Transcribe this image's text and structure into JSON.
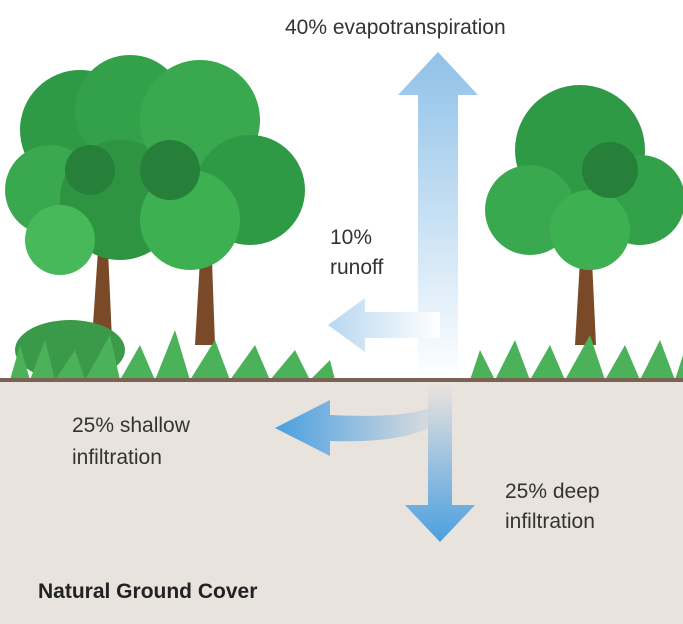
{
  "title": "Natural Ground Cover",
  "flows": [
    {
      "lines": [
        "40% evapotranspiration"
      ]
    },
    {
      "lines": [
        "10%",
        "runoff"
      ]
    },
    {
      "lines": [
        "25% shallow",
        "infiltration"
      ]
    },
    {
      "lines": [
        "25% deep",
        "infiltration"
      ]
    }
  ]
}
